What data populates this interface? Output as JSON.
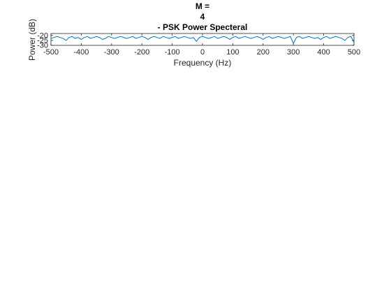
{
  "chart_data": {
    "type": "line",
    "title_lines": [
      "M =",
      "4",
      "- PSK Power Specteral"
    ],
    "xlabel": "Frequency (Hz)",
    "ylabel": "Power (dB)",
    "xlim": [
      -500,
      500
    ],
    "ylim": [
      -30,
      -18
    ],
    "xticks": [
      -500,
      -400,
      -300,
      -200,
      -100,
      0,
      100,
      200,
      300,
      400,
      500
    ],
    "yticks": [
      -20,
      -25,
      -30
    ],
    "grid": false,
    "line_color": "#0072BD",
    "series": [
      {
        "x": [
          -500,
          -490,
          -480,
          -470,
          -460,
          -450,
          -440,
          -430,
          -420,
          -410,
          -400,
          -390,
          -380,
          -370,
          -360,
          -350,
          -340,
          -330,
          -320,
          -310,
          -300,
          -290,
          -280,
          -270,
          -260,
          -250,
          -240,
          -230,
          -220,
          -210,
          -200,
          -190,
          -180,
          -170,
          -160,
          -150,
          -140,
          -130,
          -120,
          -110,
          -100,
          -90,
          -80,
          -70,
          -60,
          -50,
          -40,
          -30,
          -20,
          -10,
          0,
          10,
          20,
          30,
          40,
          50,
          60,
          70,
          80,
          90,
          100,
          110,
          120,
          130,
          140,
          150,
          160,
          170,
          180,
          190,
          200,
          210,
          220,
          230,
          240,
          250,
          260,
          270,
          280,
          290,
          300,
          310,
          320,
          330,
          340,
          350,
          360,
          370,
          380,
          390,
          400,
          410,
          420,
          430,
          440,
          450,
          460,
          470,
          480,
          490,
          500
        ],
        "values": [
          -23,
          -22,
          -21,
          -22,
          -23,
          -25,
          -22,
          -21,
          -23,
          -22,
          -24,
          -22,
          -21,
          -23,
          -22,
          -21,
          -22,
          -24,
          -23,
          -21,
          -22,
          -23,
          -22,
          -21,
          -22,
          -23,
          -22,
          -21,
          -23,
          -22,
          -21,
          -22,
          -24,
          -22,
          -21,
          -22,
          -23,
          -21,
          -22,
          -23,
          -22,
          -21,
          -23,
          -22,
          -21,
          -22,
          -23,
          -22,
          -26,
          -22,
          -21,
          -22,
          -23,
          -22,
          -21,
          -23,
          -22,
          -21,
          -22,
          -24,
          -22,
          -21,
          -23,
          -22,
          -21,
          -22,
          -23,
          -22,
          -21,
          -22,
          -24,
          -22,
          -21,
          -23,
          -22,
          -21,
          -22,
          -23,
          -22,
          -21,
          -28,
          -22,
          -21,
          -23,
          -22,
          -21,
          -22,
          -23,
          -22,
          -24,
          -22,
          -21,
          -23,
          -22,
          -21,
          -22,
          -23,
          -25,
          -22,
          -21,
          -27
        ]
      }
    ]
  }
}
